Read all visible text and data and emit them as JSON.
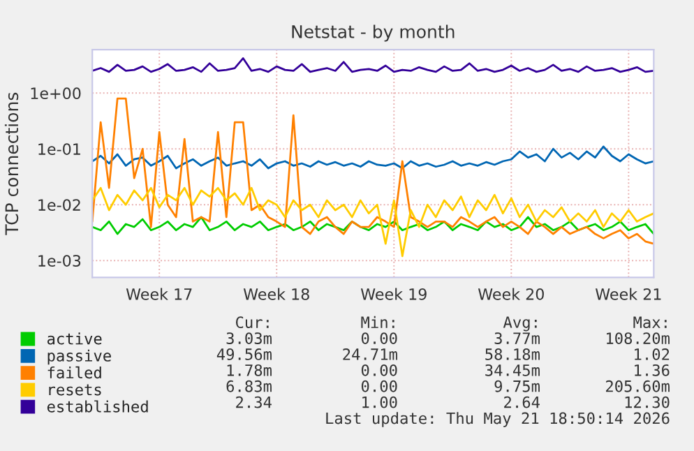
{
  "chart_data": {
    "type": "line",
    "title": "Netstat - by month",
    "ylabel": "TCP connections",
    "categories": [
      null,
      null,
      null,
      null,
      null,
      null,
      null,
      null,
      "Week 17",
      null,
      null,
      null,
      null,
      null,
      null,
      null,
      null,
      null,
      null,
      null,
      null,
      null,
      "Week 18",
      null,
      null,
      null,
      null,
      null,
      null,
      null,
      null,
      null,
      null,
      null,
      null,
      null,
      "Week 19",
      null,
      null,
      null,
      null,
      null,
      null,
      null,
      null,
      null,
      null,
      null,
      null,
      null,
      "Week 20",
      null,
      null,
      null,
      null,
      null,
      null,
      null,
      null,
      null,
      null,
      null,
      null,
      null,
      "Week 21",
      null,
      null,
      null
    ],
    "series": [
      {
        "name": "active",
        "color": "#00cc00",
        "values": [
          0.004,
          0.0035,
          0.005,
          0.003,
          0.0045,
          0.004,
          0.0055,
          0.0035,
          0.004,
          0.005,
          0.0035,
          0.0045,
          0.004,
          0.006,
          0.0035,
          0.004,
          0.005,
          0.0035,
          0.0045,
          0.004,
          0.005,
          0.0035,
          0.004,
          0.0045,
          0.0035,
          0.004,
          0.005,
          0.0035,
          0.0045,
          0.004,
          0.0035,
          0.005,
          0.004,
          0.0035,
          0.0045,
          0.004,
          0.005,
          0.0035,
          0.004,
          0.0045,
          0.0035,
          0.004,
          0.005,
          0.0035,
          0.0045,
          0.004,
          0.0035,
          0.005,
          0.004,
          0.0045,
          0.0035,
          0.004,
          0.006,
          0.004,
          0.0045,
          0.0035,
          0.004,
          0.005,
          0.0035,
          0.004,
          0.0045,
          0.0035,
          0.004,
          0.005,
          0.0035,
          0.004,
          0.0045,
          0.003
        ]
      },
      {
        "name": "passive",
        "color": "#0066b3",
        "values": [
          0.06,
          0.075,
          0.055,
          0.08,
          0.05,
          0.065,
          0.07,
          0.05,
          0.06,
          0.075,
          0.045,
          0.055,
          0.065,
          0.05,
          0.06,
          0.07,
          0.05,
          0.055,
          0.06,
          0.05,
          0.065,
          0.045,
          0.055,
          0.06,
          0.05,
          0.055,
          0.048,
          0.06,
          0.052,
          0.058,
          0.05,
          0.055,
          0.048,
          0.06,
          0.052,
          0.05,
          0.055,
          0.045,
          0.06,
          0.05,
          0.055,
          0.048,
          0.052,
          0.06,
          0.05,
          0.055,
          0.05,
          0.058,
          0.052,
          0.06,
          0.065,
          0.09,
          0.07,
          0.08,
          0.06,
          0.1,
          0.07,
          0.085,
          0.065,
          0.09,
          0.07,
          0.11,
          0.075,
          0.06,
          0.08,
          0.065,
          0.055,
          0.06
        ]
      },
      {
        "name": "failed",
        "color": "#ff8000",
        "values": [
          0.005,
          0.3,
          0.02,
          0.8,
          0.8,
          0.03,
          0.1,
          0.004,
          0.2,
          0.01,
          0.006,
          0.15,
          0.005,
          0.006,
          0.005,
          0.2,
          0.006,
          0.3,
          0.3,
          0.008,
          0.01,
          0.006,
          0.005,
          0.004,
          0.4,
          0.004,
          0.003,
          0.005,
          0.006,
          0.004,
          0.003,
          0.005,
          0.004,
          0.004,
          0.006,
          0.005,
          0.004,
          0.06,
          0.006,
          0.005,
          0.004,
          0.005,
          0.005,
          0.004,
          0.006,
          0.005,
          0.004,
          0.005,
          0.006,
          0.004,
          0.005,
          0.004,
          0.003,
          0.005,
          0.004,
          0.003,
          0.004,
          0.003,
          0.0035,
          0.004,
          0.003,
          0.0025,
          0.003,
          0.0035,
          0.0025,
          0.003,
          0.0022,
          0.002
        ]
      },
      {
        "name": "resets",
        "color": "#ffcc00",
        "values": [
          0.012,
          0.02,
          0.008,
          0.015,
          0.01,
          0.018,
          0.012,
          0.02,
          0.009,
          0.015,
          0.012,
          0.02,
          0.01,
          0.018,
          0.014,
          0.02,
          0.012,
          0.016,
          0.01,
          0.02,
          0.008,
          0.012,
          0.01,
          0.006,
          0.012,
          0.008,
          0.01,
          0.006,
          0.012,
          0.008,
          0.01,
          0.006,
          0.012,
          0.007,
          0.01,
          0.002,
          0.012,
          0.0012,
          0.008,
          0.004,
          0.01,
          0.006,
          0.012,
          0.008,
          0.014,
          0.006,
          0.012,
          0.008,
          0.015,
          0.007,
          0.013,
          0.006,
          0.01,
          0.005,
          0.008,
          0.006,
          0.009,
          0.005,
          0.007,
          0.005,
          0.008,
          0.004,
          0.007,
          0.005,
          0.008,
          0.005,
          0.006,
          0.007
        ]
      },
      {
        "name": "established",
        "color": "#330099",
        "values": [
          2.5,
          2.8,
          2.4,
          3.2,
          2.5,
          2.6,
          3.0,
          2.4,
          2.7,
          3.3,
          2.5,
          2.6,
          2.9,
          2.4,
          3.4,
          2.5,
          2.6,
          2.8,
          4.2,
          2.5,
          2.7,
          2.4,
          3.0,
          2.6,
          2.5,
          3.3,
          2.4,
          2.6,
          2.8,
          2.5,
          3.6,
          2.4,
          2.6,
          2.7,
          2.5,
          3.1,
          2.4,
          2.6,
          2.5,
          2.9,
          2.6,
          2.4,
          3.0,
          2.5,
          2.6,
          3.4,
          2.5,
          2.7,
          2.4,
          2.6,
          3.1,
          2.5,
          2.8,
          2.4,
          2.6,
          3.2,
          2.5,
          2.7,
          2.4,
          3.0,
          2.5,
          2.6,
          2.8,
          2.4,
          2.6,
          2.9,
          2.4,
          2.5
        ]
      }
    ],
    "log": "y",
    "ylim": [
      0.0005,
      6
    ],
    "yticks": [
      {
        "value": 0.001,
        "label": "1e-03"
      },
      {
        "value": 0.01,
        "label": "1e-02"
      },
      {
        "value": 0.1,
        "label": "1e-01"
      },
      {
        "value": 1,
        "label": "1e+00"
      }
    ],
    "grid": true,
    "legend": "bottom",
    "annotations": [
      "Cur:",
      "Min:",
      "Avg:",
      "Max:",
      "3.03m",
      "0.00",
      "3.77m",
      "108.20m",
      "49.56m",
      "24.71m",
      "58.18m",
      "1.02",
      "1.78m",
      "0.00",
      "34.45m",
      "1.36",
      "6.83m",
      "0.00",
      "9.75m",
      "205.60m",
      "2.34",
      "1.00",
      "2.64",
      "12.30",
      "Last update: Thu May 21 18:50:14 2026"
    ]
  }
}
